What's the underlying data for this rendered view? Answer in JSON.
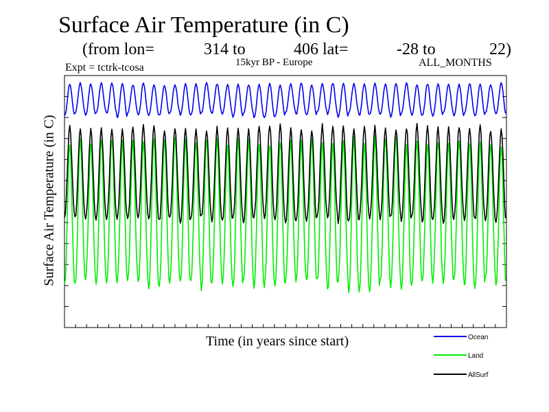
{
  "title": "Surface Air Temperature (in C)",
  "subtitle": {
    "prefix": "(from lon=",
    "lon_start": "314 to",
    "lon_end_lat": "406 lat=",
    "lat_start": "-28 to",
    "lat_end": "22)"
  },
  "expt_label": "Expt = tctrk-tcosa",
  "region_label": "15kyr BP - Europe",
  "months_label": "ALL_MONTHS",
  "chart_data": {
    "type": "line",
    "title": "Surface Air Temperature (in C)",
    "xlabel": "Time (in years since start)",
    "ylabel": "Surface Air Temperature (in C)",
    "xlim": [
      0,
      42
    ],
    "ylim": [
      0,
      12
    ],
    "x_ticks": 40,
    "y_ticks": 12,
    "cycles": 42,
    "grid": false,
    "legend_position": "below-right",
    "series": [
      {
        "name": "Ocean",
        "color": "#0000ee",
        "min": 10.0,
        "max": 11.65,
        "trough_jitter": 0.25,
        "peak_jitter": 0.1
      },
      {
        "name": "Land",
        "color": "#00ee00",
        "min": 1.75,
        "max": 9.1,
        "trough_jitter": 0.6,
        "peak_jitter": 0.4
      },
      {
        "name": "AllSurf",
        "color": "#000000",
        "min": 5.0,
        "max": 9.65,
        "trough_jitter": 0.3,
        "peak_jitter": 0.25
      }
    ]
  }
}
